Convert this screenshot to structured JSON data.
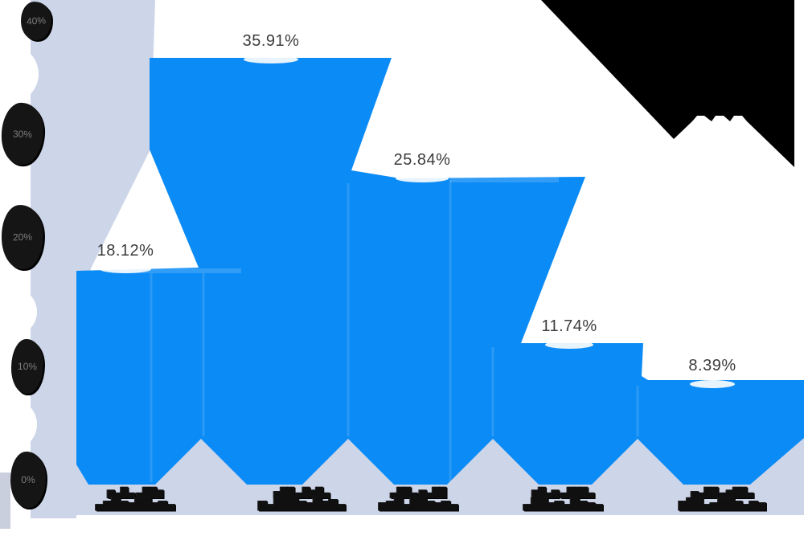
{
  "colors": {
    "background": "#ffffff",
    "bar_fill": "#0b8bf5",
    "bar_fill_light_seam": "#3aa2f8",
    "panel_fill": "#cdd5e9",
    "wedge_fill": "#000000",
    "data_label_text": "#3d3d3d",
    "axis_label_text": "#101010",
    "tick_blob_bg": "#151515",
    "tick_blob_text": "#7d7d7d"
  },
  "y_axis": {
    "tick_labels": [
      "40%",
      "30%",
      "20%",
      "10%",
      "0%"
    ],
    "tick_values": [
      40,
      30,
      20,
      10,
      0
    ]
  },
  "x_axis": {
    "legible": false,
    "labels": [
      {
        "line1": "▆▄█▄ ▄██▆",
        "line2": "▄▆█▆▅██▅▆▄"
      },
      {
        "line1": "▅██ ▄█▆█▄",
        "line2": "▆▄███▆▅█▆▇▄"
      },
      {
        "line1": "▄██▄ ▆▄██",
        "line2": "▅▆█▄██▆▅▆▄"
      },
      {
        "line1": "▆█▄▆ ▄███▄",
        "line2": "▄██▅▆▄█▆▅▄"
      },
      {
        "line1": "▅▄██ ▄▆██▄",
        "line2": "▆██▄▅██▆▄▆▅"
      }
    ]
  },
  "chart_data": {
    "type": "bar",
    "title": "",
    "categories": [
      "(illegible)",
      "(illegible)",
      "(illegible)",
      "(illegible)",
      "(illegible)"
    ],
    "categories_legible": false,
    "values": [
      18.12,
      35.91,
      25.84,
      11.74,
      8.39
    ],
    "data_labels": [
      "18.12%",
      "35.91%",
      "25.84%",
      "11.74%",
      "8.39%"
    ],
    "unit": "%",
    "ylim": [
      0,
      40
    ],
    "y_ticks": [
      0,
      10,
      20,
      30,
      40
    ],
    "grid": false,
    "legend": "none"
  }
}
